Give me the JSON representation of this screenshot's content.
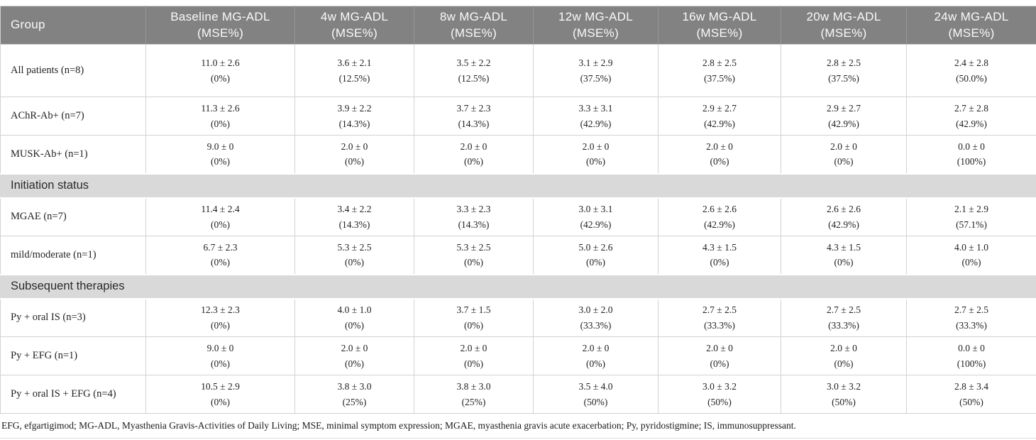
{
  "colors": {
    "header_bg": "#828282",
    "header_text": "#fafafa",
    "section_bg": "#d9d9d9",
    "cell_border": "#d2d2d2",
    "body_text": "#222222"
  },
  "table": {
    "columns": [
      {
        "title": "Group",
        "sub": ""
      },
      {
        "title": "Baseline MG-ADL",
        "sub": "(MSE%)"
      },
      {
        "title": "4w MG-ADL",
        "sub": "(MSE%)"
      },
      {
        "title": "8w MG-ADL",
        "sub": "(MSE%)"
      },
      {
        "title": "12w MG-ADL",
        "sub": "(MSE%)"
      },
      {
        "title": "16w MG-ADL",
        "sub": "(MSE%)"
      },
      {
        "title": "20w MG-ADL",
        "sub": "(MSE%)"
      },
      {
        "title": "24w MG-ADL",
        "sub": "(MSE%)"
      }
    ],
    "rows": [
      {
        "type": "data",
        "label": "All patients (n=8)",
        "cells": [
          [
            "11.0 ± 2.6",
            "(0%)"
          ],
          [
            "3.6 ± 2.1",
            "(12.5%)"
          ],
          [
            "3.5 ± 2.2",
            "(12.5%)"
          ],
          [
            "3.1 ± 2.9",
            "(37.5%)"
          ],
          [
            "2.8 ± 2.5",
            "(37.5%)"
          ],
          [
            "2.8 ± 2.5",
            "(37.5%)"
          ],
          [
            "2.4 ± 2.8",
            "(50.0%)"
          ]
        ]
      },
      {
        "type": "data",
        "label": "AChR-Ab+ (n=7)",
        "cells": [
          [
            "11.3 ± 2.6",
            "(0%)"
          ],
          [
            "3.9 ± 2.2",
            "(14.3%)"
          ],
          [
            "3.7 ± 2.3",
            "(14.3%)"
          ],
          [
            "3.3 ± 3.1",
            "(42.9%)"
          ],
          [
            "2.9 ± 2.7",
            "(42.9%)"
          ],
          [
            "2.9 ± 2.7",
            "(42.9%)"
          ],
          [
            "2.7 ± 2.8",
            "(42.9%)"
          ]
        ]
      },
      {
        "type": "data",
        "label": "MUSK-Ab+ (n=1)",
        "cells": [
          [
            "9.0 ± 0",
            "(0%)"
          ],
          [
            "2.0 ± 0",
            "(0%)"
          ],
          [
            "2.0 ± 0",
            "(0%)"
          ],
          [
            "2.0 ± 0",
            "(0%)"
          ],
          [
            "2.0 ± 0",
            "(0%)"
          ],
          [
            "2.0 ± 0",
            "(0%)"
          ],
          [
            "0.0 ± 0",
            "(100%)"
          ]
        ]
      },
      {
        "type": "section",
        "label": "Initiation status"
      },
      {
        "type": "data",
        "label": "MGAE (n=7)",
        "cells": [
          [
            "11.4 ± 2.4",
            "(0%)"
          ],
          [
            "3.4 ± 2.2",
            "(14.3%)"
          ],
          [
            "3.3 ± 2.3",
            "(14.3%)"
          ],
          [
            "3.0 ± 3.1",
            "(42.9%)"
          ],
          [
            "2.6 ± 2.6",
            "(42.9%)"
          ],
          [
            "2.6 ± 2.6",
            "(42.9%)"
          ],
          [
            "2.1 ± 2.9",
            "(57.1%)"
          ]
        ]
      },
      {
        "type": "data",
        "label": "mild/moderate (n=1)",
        "cells": [
          [
            "6.7 ± 2.3",
            "(0%)"
          ],
          [
            "5.3 ± 2.5",
            "(0%)"
          ],
          [
            "5.3 ± 2.5",
            "(0%)"
          ],
          [
            "5.0 ± 2.6",
            "(0%)"
          ],
          [
            "4.3 ± 1.5",
            "(0%)"
          ],
          [
            "4.3 ± 1.5",
            "(0%)"
          ],
          [
            "4.0 ± 1.0",
            "(0%)"
          ]
        ]
      },
      {
        "type": "section",
        "label": "Subsequent therapies"
      },
      {
        "type": "data",
        "label": "Py + oral IS (n=3)",
        "cells": [
          [
            "12.3 ± 2.3",
            "(0%)"
          ],
          [
            "4.0 ± 1.0",
            "(0%)"
          ],
          [
            "3.7 ± 1.5",
            "(0%)"
          ],
          [
            "3.0 ± 2.0",
            "(33.3%)"
          ],
          [
            "2.7 ± 2.5",
            "(33.3%)"
          ],
          [
            "2.7 ± 2.5",
            "(33.3%)"
          ],
          [
            "2.7 ± 2.5",
            "(33.3%)"
          ]
        ]
      },
      {
        "type": "data",
        "label": "Py + EFG (n=1)",
        "cells": [
          [
            "9.0 ± 0",
            "(0%)"
          ],
          [
            "2.0 ± 0",
            "(0%)"
          ],
          [
            "2.0 ± 0",
            "(0%)"
          ],
          [
            "2.0 ± 0",
            "(0%)"
          ],
          [
            "2.0 ± 0",
            "(0%)"
          ],
          [
            "2.0 ± 0",
            "(0%)"
          ],
          [
            "0.0 ± 0",
            "(100%)"
          ]
        ]
      },
      {
        "type": "data",
        "label": "Py + oral IS + EFG (n=4)",
        "cells": [
          [
            "10.5 ± 2.9",
            "(0%)"
          ],
          [
            "3.8 ± 3.0",
            "(25%)"
          ],
          [
            "3.8 ± 3.0",
            "(25%)"
          ],
          [
            "3.5 ± 4.0",
            "(50%)"
          ],
          [
            "3.0 ± 3.2",
            "(50%)"
          ],
          [
            "3.0 ± 3.2",
            "(50%)"
          ],
          [
            "2.8 ± 3.4",
            "(50%)"
          ]
        ]
      }
    ]
  },
  "footnote": "EFG, efgartigimod; MG-ADL, Myasthenia Gravis-Activities of Daily Living; MSE, minimal symptom expression; MGAE, myasthenia gravis acute exacerbation; Py, pyridostigmine; IS, immunosuppressant."
}
